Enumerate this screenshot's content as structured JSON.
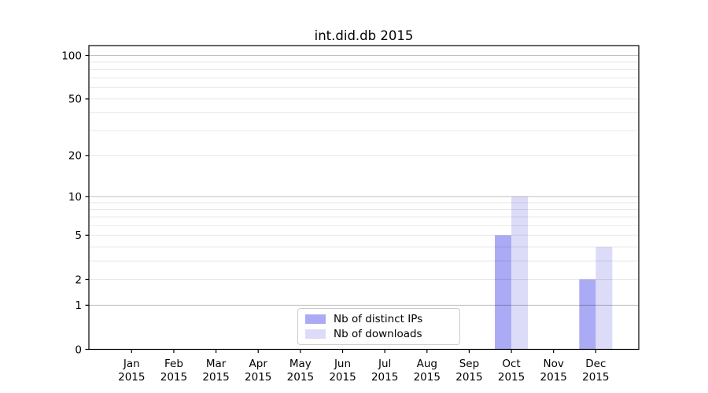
{
  "chart_data": {
    "type": "bar",
    "title": "int.did.db 2015",
    "categories": [
      "Jan",
      "Feb",
      "Mar",
      "Apr",
      "May",
      "Jun",
      "Jul",
      "Aug",
      "Sep",
      "Oct",
      "Nov",
      "Dec"
    ],
    "category_sublabel": "2015",
    "series": [
      {
        "name": "Nb of distinct IPs",
        "color": "#aaaaf5",
        "values": [
          0,
          0,
          0,
          0,
          0,
          0,
          0,
          0,
          0,
          5,
          0,
          2
        ]
      },
      {
        "name": "Nb of downloads",
        "color": "#dcdcf8",
        "values": [
          0,
          0,
          0,
          0,
          0,
          0,
          0,
          0,
          0,
          10,
          0,
          4
        ]
      }
    ],
    "xlabel": "",
    "ylabel": "",
    "yscale": "log1p",
    "y_tick_values": [
      100,
      50,
      20,
      10,
      5,
      2,
      1,
      0
    ],
    "y_tick_labels": [
      "100",
      "50",
      "20",
      "10",
      "5",
      "2",
      "1",
      "0"
    ],
    "major_grid_values": [
      1,
      10,
      100
    ],
    "minor_grid_values": [
      2,
      3,
      4,
      5,
      6,
      7,
      8,
      9,
      20,
      30,
      40,
      50,
      60,
      70,
      80,
      90
    ],
    "ylim": [
      0,
      117
    ],
    "grid": "horizontal only, drawn above bars",
    "legend_position": "lower center inside axes",
    "colors": {
      "spine": "#000000",
      "tick_label": "#000000",
      "major_grid": "rgba(0,0,0,0.25)",
      "minor_grid": "rgba(0,0,0,0.09)",
      "background": "#ffffff"
    }
  }
}
